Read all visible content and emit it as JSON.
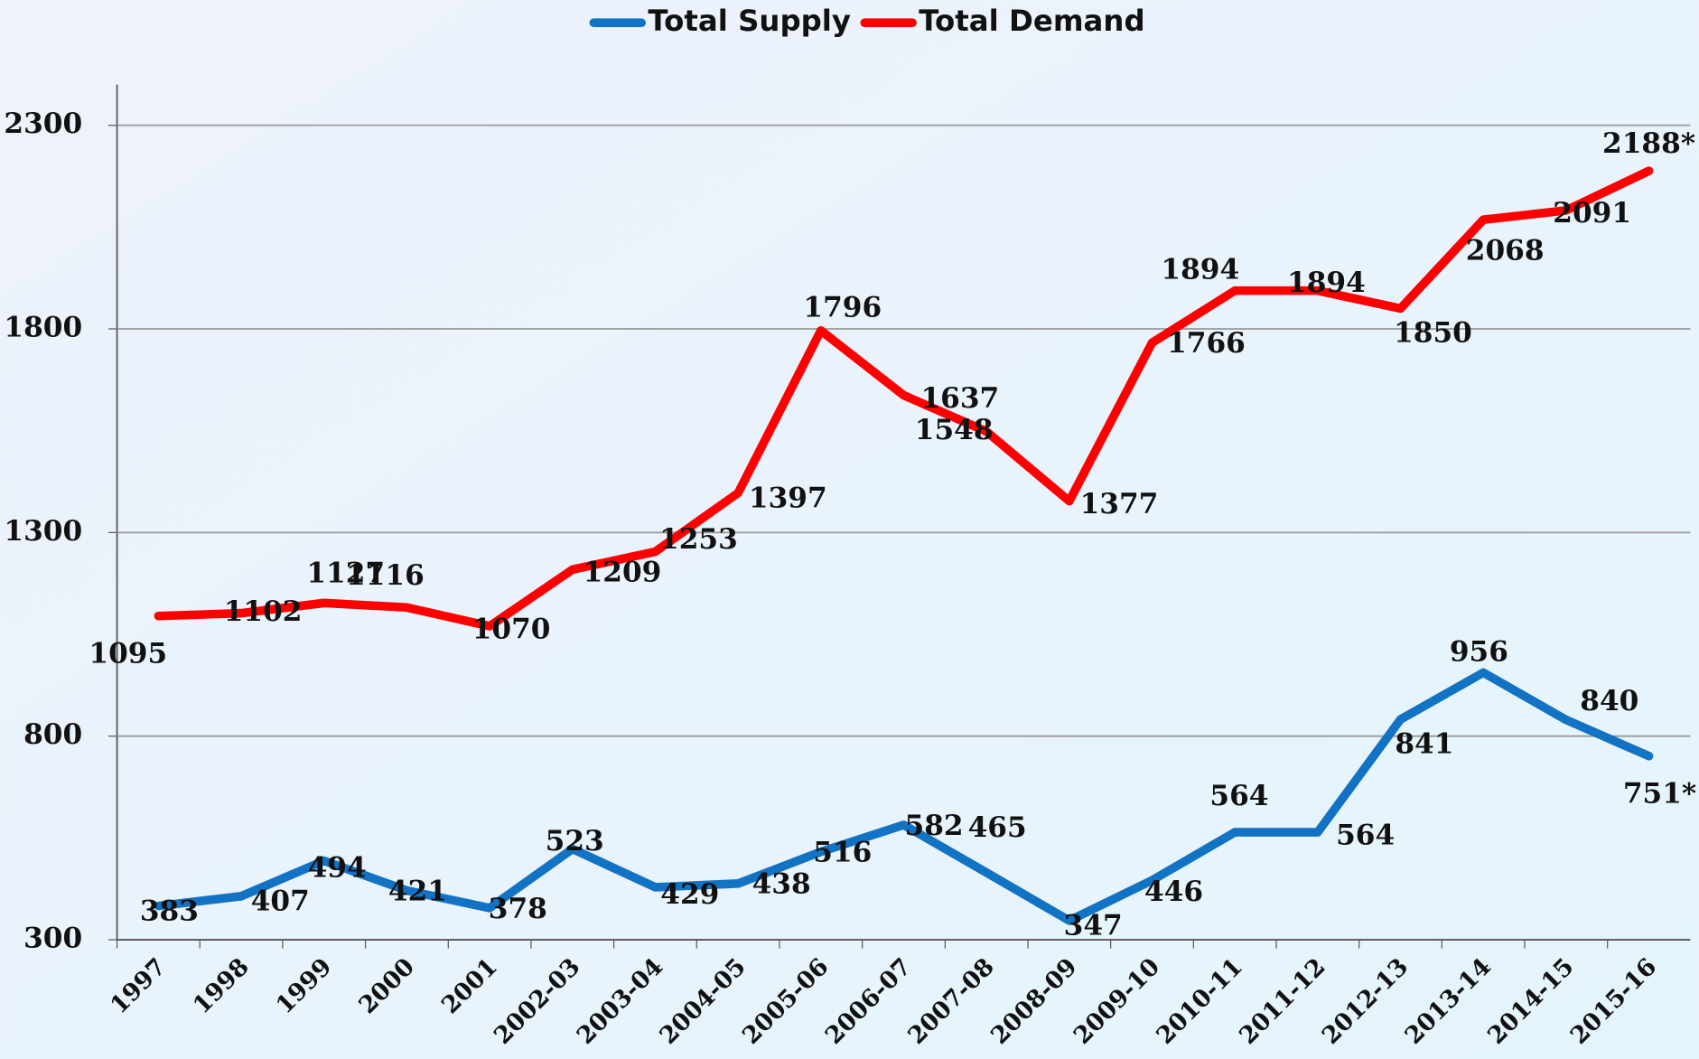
{
  "chart_data": {
    "type": "line",
    "categories": [
      "1997",
      "1998",
      "1999",
      "2000",
      "2001",
      "2002-03",
      "2003-04",
      "2004-05",
      "2005-06",
      "2006-07",
      "2007-08",
      "2008-09",
      "2009-10",
      "2010-11",
      "2011-12",
      "2012-13",
      "2013-14",
      "2014-15",
      "2015-16"
    ],
    "series": [
      {
        "name": "Total Supply",
        "color": "#1272c4",
        "values": [
          383,
          407,
          494,
          421,
          378,
          523,
          429,
          438,
          516,
          582,
          465,
          347,
          446,
          564,
          564,
          841,
          956,
          840,
          751
        ],
        "value_labels": [
          "383",
          "407",
          "494",
          "421",
          "378",
          "523",
          "429",
          "438",
          "516",
          "582",
          "465",
          "347",
          "446",
          "564",
          "564",
          "841",
          "956",
          "840",
          "751*"
        ]
      },
      {
        "name": "Total Demand",
        "color": "#ff0000",
        "values": [
          1095,
          1102,
          1127,
          1116,
          1070,
          1209,
          1253,
          1397,
          1796,
          1637,
          1548,
          1377,
          1766,
          1894,
          1894,
          1850,
          2068,
          2091,
          2188
        ],
        "value_labels": [
          "1095",
          "1102",
          "1127",
          "1116",
          "1070",
          "1209",
          "1253",
          "1397",
          "1796",
          "1637",
          "1548",
          "1377",
          "1766",
          "1894",
          "1894",
          "1850",
          "2068",
          "2091",
          "2188*"
        ]
      }
    ],
    "ylim": [
      300,
      2400
    ],
    "yticks": [
      300,
      800,
      1300,
      1800,
      2300
    ],
    "grid": true,
    "legend": "top"
  }
}
